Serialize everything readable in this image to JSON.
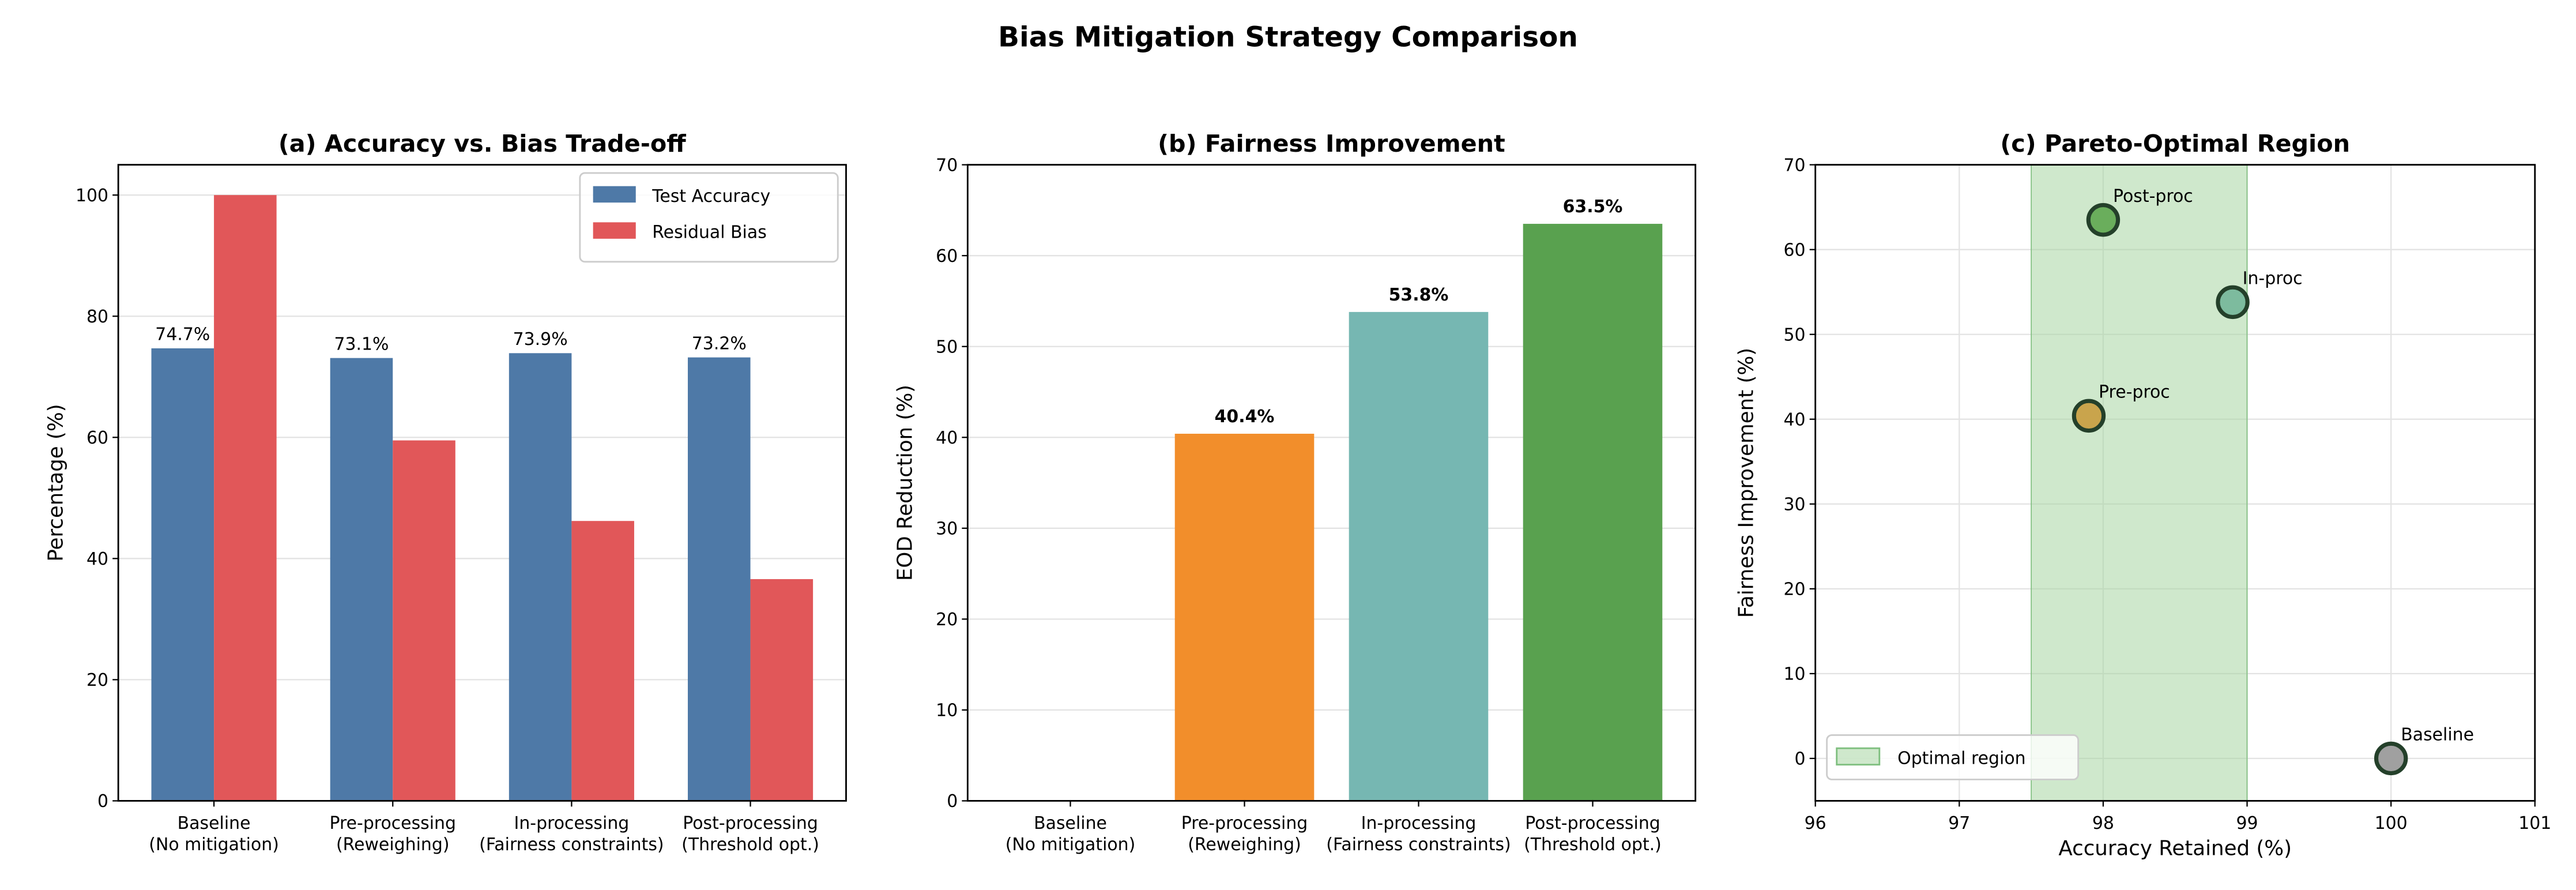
{
  "suptitle": "Bias Mitigation Strategy Comparison",
  "chart_data": [
    {
      "type": "bar",
      "title": "(a) Accuracy vs. Bias Trade-off",
      "xlabel": "",
      "ylabel": "Percentage (%)",
      "categories": [
        [
          "Baseline",
          "(No mitigation)"
        ],
        [
          "Pre-processing",
          "(Reweighing)"
        ],
        [
          "In-processing",
          "(Fairness constraints)"
        ],
        [
          "Post-processing",
          "(Threshold opt.)"
        ]
      ],
      "series": [
        {
          "name": "Test Accuracy",
          "color": "#4e79a7",
          "values": [
            74.7,
            73.1,
            73.9,
            73.2
          ],
          "labels": [
            "74.7%",
            "73.1%",
            "73.9%",
            "73.2%"
          ]
        },
        {
          "name": "Residual Bias",
          "color": "#e15759",
          "values": [
            100,
            59.5,
            46.2,
            36.6
          ]
        }
      ],
      "ylim": [
        0,
        105
      ],
      "yticks": [
        0,
        20,
        40,
        60,
        80,
        100
      ],
      "grid": "y",
      "legend": "top-right"
    },
    {
      "type": "bar",
      "title": "(b) Fairness Improvement",
      "xlabel": "",
      "ylabel": "EOD Reduction (%)",
      "categories": [
        [
          "Baseline",
          "(No mitigation)"
        ],
        [
          "Pre-processing",
          "(Reweighing)"
        ],
        [
          "In-processing",
          "(Fairness constraints)"
        ],
        [
          "Post-processing",
          "(Threshold opt.)"
        ]
      ],
      "values": [
        0,
        40.4,
        53.8,
        63.5
      ],
      "labels": [
        "",
        "40.4%",
        "53.8%",
        "63.5%"
      ],
      "colors": [
        "#bab0ac",
        "#f28e2b",
        "#76b7b2",
        "#59a14f"
      ],
      "ylim": [
        0,
        70
      ],
      "yticks": [
        0,
        10,
        20,
        30,
        40,
        50,
        60,
        70
      ],
      "grid": "y"
    },
    {
      "type": "scatter",
      "title": "(c) Pareto-Optimal Region",
      "xlabel": "Accuracy Retained (%)",
      "ylabel": "Fairness Improvement (%)",
      "points": [
        {
          "label": "Baseline",
          "x": 100.0,
          "y": 0.0,
          "color": "#a0a0a0"
        },
        {
          "label": "Pre-proc",
          "x": 97.9,
          "y": 40.4,
          "color": "#c9a44c"
        },
        {
          "label": "In-proc",
          "x": 98.9,
          "y": 53.8,
          "color": "#7dbb9e"
        },
        {
          "label": "Post-proc",
          "x": 98.0,
          "y": 63.5,
          "color": "#6aae5c"
        }
      ],
      "region": {
        "name": "Optimal region",
        "x": [
          97.5,
          99.0
        ],
        "color": "#a8d5a2"
      },
      "xlim": [
        96,
        101
      ],
      "ylim": [
        -5,
        70
      ],
      "xticks": [
        96,
        97,
        98,
        99,
        100,
        101
      ],
      "yticks": [
        0,
        10,
        20,
        30,
        40,
        50,
        60,
        70
      ],
      "grid": "both",
      "legend": "bottom-left"
    }
  ]
}
